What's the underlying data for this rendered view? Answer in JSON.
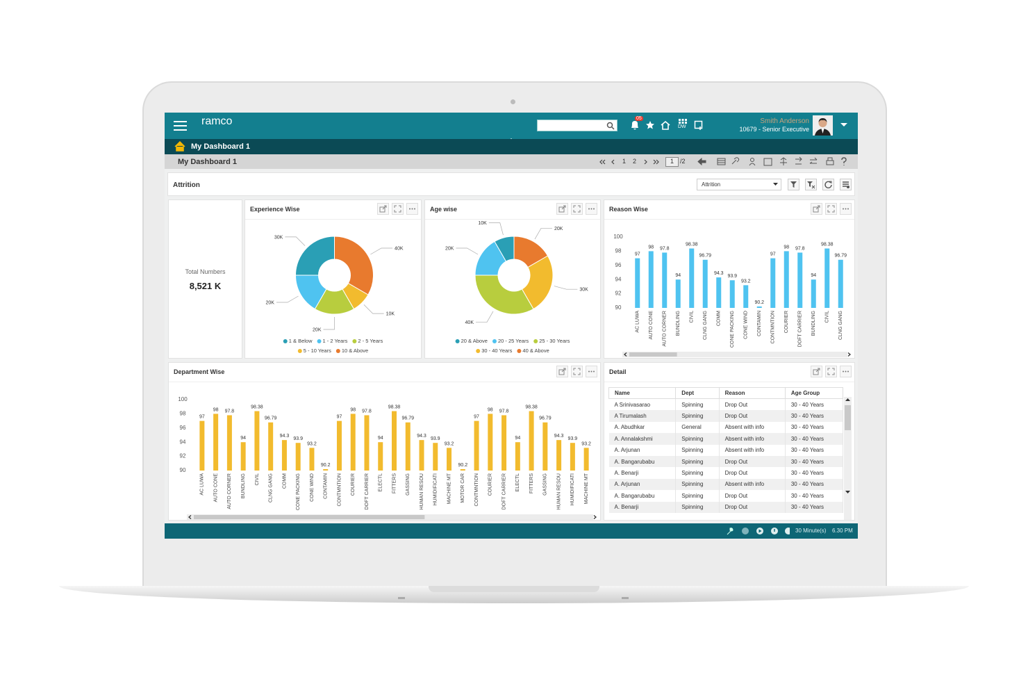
{
  "app": {
    "brand": "ramco",
    "notifications": "05",
    "shortcut": "DW",
    "user_name": "Smith Anderson",
    "user_role": "10679 - Senior Executive"
  },
  "breadcrumb": "My Dashboard 1",
  "page_title": "My Dashboard 1",
  "pager": {
    "pages": [
      "1",
      "2"
    ],
    "current": "1",
    "total": "/2"
  },
  "section": {
    "title": "Attrition",
    "filter": "Attrition"
  },
  "kpi": {
    "label": "Total Numbers",
    "value": "8,521 K"
  },
  "chart_data": [
    {
      "type": "donut",
      "title": "Experience Wise",
      "categories": [
        "1 & Below",
        "1 - 2 Years",
        "2 - 5 Years",
        "5 - 10 Years",
        "10 & Above"
      ],
      "values": [
        30000,
        20000,
        20000,
        10000,
        40000
      ],
      "value_labels": [
        "30K",
        "20K",
        "20K",
        "10K",
        "40K"
      ],
      "colors": [
        "#2a9fb5",
        "#4fc3f0",
        "#b8cd3e",
        "#f2bb2e",
        "#e87a2e"
      ]
    },
    {
      "type": "donut",
      "title": "Age wise",
      "categories": [
        "20 & Above",
        "20 - 25 Years",
        "25 - 30 Years",
        "30 - 40 Years",
        "40 & Above"
      ],
      "values": [
        10000,
        20000,
        40000,
        30000,
        20000
      ],
      "value_labels": [
        "10K",
        "20K",
        "40K",
        "30K",
        "20K"
      ],
      "colors": [
        "#2a9fb5",
        "#4fc3f0",
        "#b8cd3e",
        "#f2bb2e",
        "#e87a2e"
      ]
    },
    {
      "type": "bar",
      "title": "Reason Wise",
      "categories": [
        "AC LUWA",
        "AUTO CONE",
        "AUTO CORNER",
        "BUNDLING",
        "CIVIL",
        "CLNG GANG",
        "COMM",
        "CONE PACKING",
        "CONE WIND",
        "CONTAMIN",
        "CONTMNTION",
        "COURIER",
        "DOFT CARRIER",
        "BUNDLING",
        "CIVIL",
        "CLNG GANG"
      ],
      "values": [
        97,
        98,
        97.8,
        94,
        98.38,
        96.79,
        94.3,
        93.9,
        93.2,
        90.2,
        97,
        98,
        97.8,
        94,
        98.38,
        96.79
      ],
      "color": "#4fc3f0",
      "ylim": [
        90,
        100
      ],
      "yticks": [
        90,
        92,
        94,
        96,
        98,
        100
      ],
      "grid": false
    },
    {
      "type": "bar",
      "title": "Department Wise",
      "categories": [
        "AC LUWA",
        "AUTO CONE",
        "AUTO CORNER",
        "BUNDLING",
        "CIVIL",
        "CLNG GANG",
        "COMM",
        "CONE PACKING",
        "CONE WIND",
        "CONTAMIN",
        "CONTMNTION",
        "COURIER",
        "DOFT CARRIER",
        "ELECTL",
        "FITTERS",
        "GASSING",
        "HUMAN RESOU",
        "HUMIDIFICATI",
        "MACHINE MT",
        "MOTOR CAR",
        "CONTMNTION",
        "COURIER",
        "DOFT CARRIER",
        "ELECTL",
        "FITTERS",
        "GASSING",
        "HUMAN RESOU",
        "HUMIDIFICATI",
        "MACHINE MT"
      ],
      "values": [
        97,
        98,
        97.8,
        94,
        98.38,
        96.79,
        94.3,
        93.9,
        93.2,
        90.2,
        97,
        98,
        97.8,
        94,
        98.38,
        96.79,
        94.3,
        93.9,
        93.2,
        90.2,
        97,
        98,
        97.8,
        94,
        98.38,
        96.79,
        94.3,
        93.9,
        93.2
      ],
      "color": "#f2bb2e",
      "ylim": [
        90,
        100
      ],
      "yticks": [
        90,
        92,
        94,
        96,
        98,
        100
      ],
      "grid": false
    }
  ],
  "detail": {
    "title": "Detail",
    "columns": [
      "Name",
      "Dept",
      "Reason",
      "Age Group"
    ],
    "rows": [
      [
        "A Srinivasarao",
        "Spinning",
        "Drop Out",
        "30 - 40 Years"
      ],
      [
        "A Tirumalash",
        "Spinning",
        "Drop Out",
        "30 - 40 Years"
      ],
      [
        "A. Abudhkar",
        "General",
        "Absent with info",
        "30 - 40 Years"
      ],
      [
        "A. Annalakshmi",
        "Spinning",
        "Absent with info",
        "30 - 40 Years"
      ],
      [
        "A. Arjunan",
        "Spinning",
        "Absent with info",
        "30 - 40 Years"
      ],
      [
        "A. Bangarubabu",
        "Spinning",
        "Drop Out",
        "30 - 40 Years"
      ],
      [
        "A. Benarji",
        "Spinning",
        "Drop Out",
        "30 - 40 Years"
      ],
      [
        "A. Arjunan",
        "Spinning",
        "Absent with info",
        "30 - 40 Years"
      ],
      [
        "A. Bangarubabu",
        "Spinning",
        "Drop Out",
        "30 - 40 Years"
      ],
      [
        "A. Benarji",
        "Spinning",
        "Drop Out",
        "30 - 40 Years"
      ]
    ]
  },
  "status": {
    "timeout": "30 Minute(s)",
    "time": "6.30 PM"
  }
}
